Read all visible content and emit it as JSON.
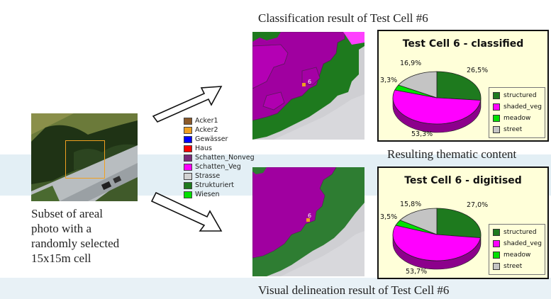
{
  "top_caption": "Classification result of  Test Cell #6",
  "bottom_caption": "Visual delineation result of Test Cell #6",
  "middle_caption": "Resulting thematic content",
  "photo_description": [
    "Subset of areal",
    "photo with a",
    "randomly selected",
    "15x15m cell"
  ],
  "cell_marker": "6",
  "legend": [
    {
      "label": "Acker1",
      "color": "#8b5a2b"
    },
    {
      "label": "Acker2",
      "color": "#f0a020"
    },
    {
      "label": "Gewässer",
      "color": "#0000ff"
    },
    {
      "label": "Haus",
      "color": "#ff0000"
    },
    {
      "label": "Schatten_Nonveg",
      "color": "#7a2a7a"
    },
    {
      "label": "Schatten_Veg",
      "color": "#ff00ff"
    },
    {
      "label": "Strasse",
      "color": "#d2d2d2"
    },
    {
      "label": "Strukturiert",
      "color": "#1e7a1e"
    },
    {
      "label": "Wiesen",
      "color": "#00e000"
    }
  ],
  "chart_data": [
    {
      "type": "pie",
      "title": "Test Cell 6 - classified",
      "categories": [
        "structured",
        "shaded_veg",
        "meadow",
        "street"
      ],
      "values": [
        26.5,
        53.3,
        3.3,
        16.9
      ],
      "labels": [
        "26,5%",
        "53,3%",
        "3,3%",
        "16,9%"
      ],
      "colors": [
        "#1e7a1e",
        "#ff00ff",
        "#00e000",
        "#c4c4c4"
      ],
      "legend_position": "right"
    },
    {
      "type": "pie",
      "title": "Test Cell 6 - digitised",
      "categories": [
        "structured",
        "shaded_veg",
        "meadow",
        "street"
      ],
      "values": [
        27.0,
        53.7,
        3.5,
        15.8
      ],
      "labels": [
        "27,0%",
        "53,7%",
        "3,5%",
        "15,8%"
      ],
      "colors": [
        "#1e7a1e",
        "#ff00ff",
        "#00e000",
        "#c4c4c4"
      ],
      "legend_position": "right"
    }
  ]
}
